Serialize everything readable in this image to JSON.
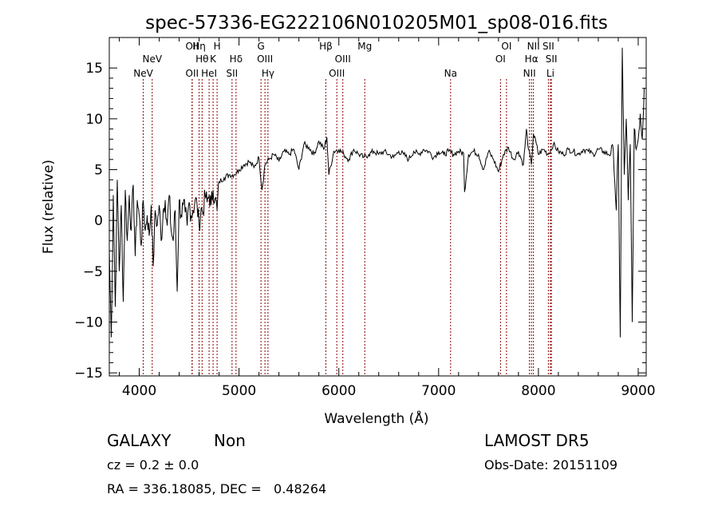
{
  "chart_data": {
    "type": "line",
    "title": "spec-57336-EG222106N010205M01_sp08-016.fits",
    "xlabel": "Wavelength (Å)",
    "ylabel": "Flux (relative)",
    "xlim": [
      3700,
      9080
    ],
    "ylim": [
      -15.3,
      18
    ],
    "xticks": [
      4000,
      5000,
      6000,
      7000,
      8000,
      9000
    ],
    "yticks": [
      -15,
      -10,
      -5,
      0,
      5,
      10,
      15
    ],
    "grid": false,
    "line_color": "#000000",
    "marker_color": "#8b0000",
    "emission_lines": [
      {
        "label": "NeV",
        "wavelength": 4040,
        "row": 2
      },
      {
        "label": "NeV",
        "wavelength": 4130,
        "row": 1
      },
      {
        "label": "OII",
        "wavelength": 4530,
        "row": 0
      },
      {
        "label": "OII",
        "wavelength": 4530,
        "row": 2
      },
      {
        "label": "Hη",
        "wavelength": 4600,
        "row": 0
      },
      {
        "label": "Hθ",
        "wavelength": 4630,
        "row": 1
      },
      {
        "label": "HeI",
        "wavelength": 4700,
        "row": 2
      },
      {
        "label": "K",
        "wavelength": 4740,
        "row": 1
      },
      {
        "label": "H",
        "wavelength": 4780,
        "row": 0
      },
      {
        "label": "SII",
        "wavelength": 4930,
        "row": 2
      },
      {
        "label": "Hδ",
        "wavelength": 4970,
        "row": 1
      },
      {
        "label": "G",
        "wavelength": 5220,
        "row": 0
      },
      {
        "label": "OIII",
        "wavelength": 5260,
        "row": 1
      },
      {
        "label": "Hγ",
        "wavelength": 5290,
        "row": 2
      },
      {
        "label": "Hβ",
        "wavelength": 5870,
        "row": 0
      },
      {
        "label": "OIII",
        "wavelength": 5980,
        "row": 2
      },
      {
        "label": "OIII",
        "wavelength": 6040,
        "row": 1
      },
      {
        "label": "Mg",
        "wavelength": 6260,
        "row": 0
      },
      {
        "label": "Na",
        "wavelength": 7120,
        "row": 2
      },
      {
        "label": "OI",
        "wavelength": 7620,
        "row": 1
      },
      {
        "label": "OI",
        "wavelength": 7680,
        "row": 0
      },
      {
        "label": "Hα",
        "wavelength": 7930,
        "row": 1
      },
      {
        "label": "NII",
        "wavelength": 7910,
        "row": 2
      },
      {
        "label": "NII",
        "wavelength": 7950,
        "row": 0
      },
      {
        "label": "SII",
        "wavelength": 8100,
        "row": 0
      },
      {
        "label": "SII",
        "wavelength": 8130,
        "row": 1
      },
      {
        "label": "Li",
        "wavelength": 8120,
        "row": 2
      }
    ],
    "series": [
      {
        "x": [
          3700,
          3720,
          3740,
          3760,
          3780,
          3800,
          3820,
          3840,
          3860,
          3880,
          3900,
          3920,
          3940,
          3960,
          3980,
          4000,
          4020,
          4040,
          4060,
          4080,
          4100,
          4120,
          4140,
          4160,
          4180,
          4200,
          4220,
          4240,
          4260,
          4280,
          4300,
          4320,
          4340,
          4360,
          4380,
          4400,
          4420,
          4440,
          4460,
          4480,
          4500,
          4520,
          4540,
          4560,
          4580,
          4600,
          4620,
          4640,
          4660,
          4680,
          4700,
          4720,
          4740,
          4760,
          4780,
          4800,
          4850,
          4900,
          4950,
          5000,
          5050,
          5100,
          5150,
          5200,
          5230,
          5260,
          5300,
          5350,
          5400,
          5450,
          5500,
          5550,
          5600,
          5650,
          5700,
          5750,
          5800,
          5850,
          5880,
          5900,
          5950,
          6000,
          6050,
          6100,
          6150,
          6200,
          6250,
          6300,
          6350,
          6400,
          6450,
          6500,
          6550,
          6600,
          6650,
          6700,
          6750,
          6800,
          6850,
          6900,
          6950,
          7000,
          7050,
          7100,
          7150,
          7200,
          7250,
          7260,
          7300,
          7350,
          7400,
          7450,
          7500,
          7550,
          7600,
          7650,
          7700,
          7750,
          7800,
          7850,
          7880,
          7900,
          7930,
          7950,
          7980,
          8000,
          8050,
          8100,
          8150,
          8200,
          8250,
          8300,
          8350,
          8400,
          8450,
          8500,
          8550,
          8600,
          8650,
          8700,
          8750,
          8780,
          8800,
          8820,
          8840,
          8860,
          8880,
          8900,
          8920,
          8940,
          8960,
          8980,
          9000,
          9020,
          9040,
          9060
        ],
        "y": [
          -3.0,
          -11.5,
          2.5,
          -8.5,
          4.0,
          -5.0,
          1.5,
          -8.0,
          3.0,
          -2.0,
          2.5,
          -1.0,
          3.5,
          -3.5,
          2.0,
          0.5,
          -2.5,
          2.0,
          -1.0,
          0.5,
          -1.5,
          1.5,
          -4.5,
          1.0,
          -0.5,
          1.5,
          -2.0,
          1.0,
          2.0,
          -0.5,
          2.5,
          -1.0,
          -2.0,
          1.0,
          -7.0,
          2.0,
          0.5,
          1.5,
          0.8,
          -0.5,
          1.8,
          0.5,
          1.0,
          2.0,
          1.5,
          -0.5,
          1.2,
          0.8,
          2.5,
          1.8,
          2.5,
          1.5,
          3.0,
          2.2,
          1.0,
          3.8,
          4.2,
          4.5,
          4.5,
          5.0,
          5.5,
          5.8,
          5.2,
          6.2,
          3.0,
          5.5,
          6.0,
          6.5,
          5.8,
          6.8,
          6.5,
          7.0,
          5.0,
          7.5,
          7.2,
          6.5,
          7.8,
          7.0,
          8.2,
          4.5,
          6.8,
          7.0,
          6.5,
          6.0,
          7.0,
          6.5,
          6.2,
          6.5,
          6.8,
          6.5,
          6.8,
          6.5,
          6.2,
          6.8,
          6.5,
          6.0,
          6.8,
          6.5,
          7.0,
          6.8,
          6.2,
          6.8,
          6.5,
          6.8,
          6.5,
          6.8,
          6.6,
          2.8,
          6.5,
          6.8,
          6.5,
          5.0,
          6.8,
          6.0,
          4.8,
          6.5,
          7.2,
          6.0,
          6.8,
          5.5,
          9.0,
          7.0,
          5.5,
          8.5,
          7.5,
          6.5,
          7.0,
          6.5,
          7.5,
          6.8,
          6.5,
          7.0,
          6.8,
          6.5,
          7.0,
          6.8,
          6.5,
          7.0,
          6.8,
          6.5,
          7.0,
          1.0,
          7.5,
          -11.5,
          17.0,
          4.5,
          10.0,
          2.0,
          7.5,
          -10.0,
          9.0,
          7.0,
          8.0,
          10.5,
          8.0,
          13.0
        ]
      }
    ]
  },
  "info": {
    "object_class": "GALAXY",
    "subclass": "Non",
    "survey": "LAMOST DR5",
    "redshift": "cz = 0.2 ± 0.0",
    "obs_date": "Obs-Date: 20151109",
    "coords": "RA = 336.18085, DEC =   0.48264"
  }
}
